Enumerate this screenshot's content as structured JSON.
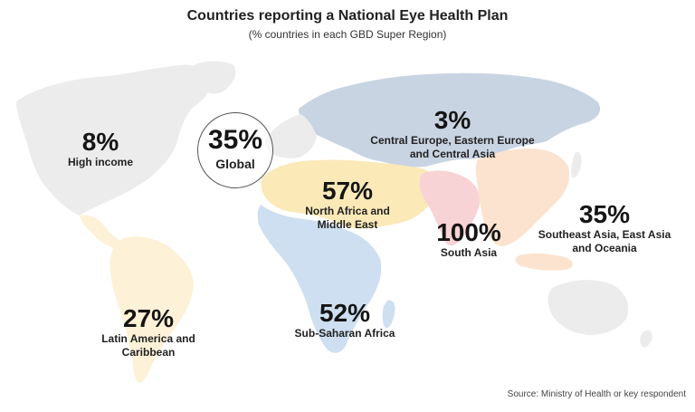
{
  "header": {
    "title": "Countries reporting a National Eye Health Plan",
    "subtitle": "(% countries in each GBD Super Region)"
  },
  "colors": {
    "high_income": "#ececec",
    "central_europe_asia": "#c9d4e3",
    "north_africa_middle_east": "#fbe9b8",
    "sub_saharan_africa": "#cddff0",
    "south_asia": "#f7d3d6",
    "southeast_asia_oceania": "#fbe3cf",
    "latin_america": "#fdf2d7"
  },
  "global": {
    "value": "35%",
    "label": "Global"
  },
  "regions": {
    "high_income": {
      "value": "8%",
      "label": "High income"
    },
    "central_europe": {
      "value": "3%",
      "label_line1": "Central Europe, Eastern Europe",
      "label_line2": "and Central Asia"
    },
    "north_africa": {
      "value": "57%",
      "label_line1": "North Africa and",
      "label_line2": "Middle East"
    },
    "south_asia": {
      "value": "100%",
      "label": "South Asia"
    },
    "southeast_asia": {
      "value": "35%",
      "label_line1": "Southeast Asia, East Asia",
      "label_line2": "and Oceania"
    },
    "sub_saharan": {
      "value": "52%",
      "label": "Sub-Saharan Africa"
    },
    "latin_america": {
      "value": "27%",
      "label_line1": "Latin America and",
      "label_line2": "Caribbean"
    }
  },
  "source": "Source: Ministry of Health or key respondent"
}
